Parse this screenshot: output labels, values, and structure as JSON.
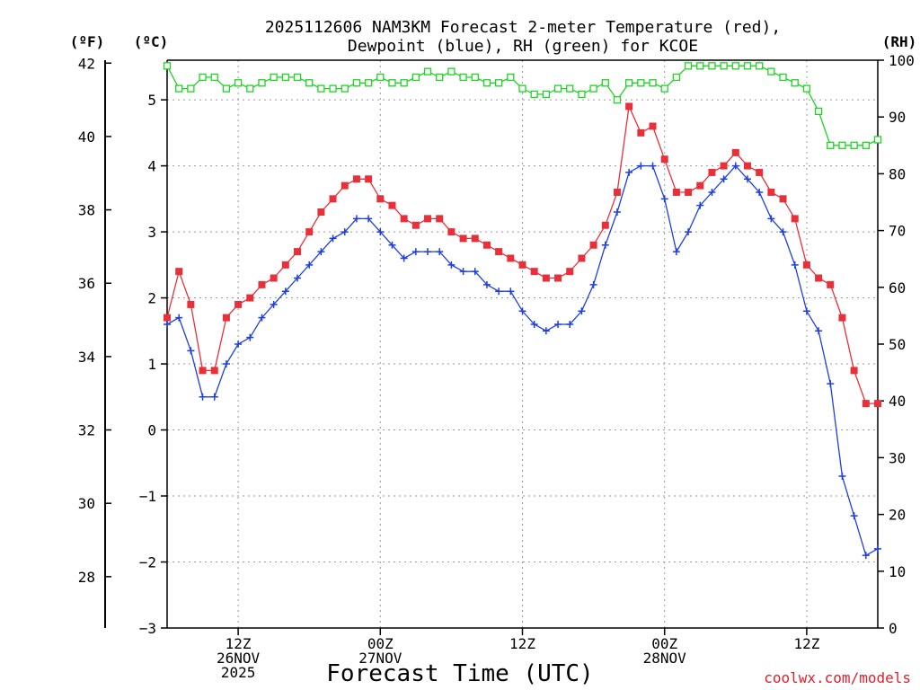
{
  "chart_data": {
    "type": "line",
    "title_line1": "2025112606 NAM3KM Forecast 2-meter Temperature (red),",
    "title_line2": "Dewpoint (blue), RH (green) for KCOE",
    "xlabel": "Forecast Time (UTC)",
    "credit": "coolwx.com/models",
    "units": {
      "fahrenheit": "(ºF)",
      "celsius": "(ºC)",
      "rh": "(RH)"
    },
    "x_range_hours": [
      6,
      66
    ],
    "celsius_range": [
      -3,
      5.6
    ],
    "fahrenheit_ticks": [
      28,
      30,
      32,
      34,
      36,
      38,
      40,
      42
    ],
    "celsius_ticks": [
      -3,
      -2,
      -1,
      0,
      1,
      2,
      3,
      4,
      5
    ],
    "rh_range": [
      0,
      100
    ],
    "rh_ticks": [
      0,
      10,
      20,
      30,
      40,
      50,
      60,
      70,
      80,
      90,
      100
    ],
    "x_ticks": [
      {
        "hour": 12,
        "lines": [
          "12Z",
          "26NOV",
          "2025"
        ]
      },
      {
        "hour": 24,
        "lines": [
          "00Z",
          "27NOV"
        ]
      },
      {
        "hour": 36,
        "lines": [
          "12Z",
          ""
        ]
      },
      {
        "hour": 48,
        "lines": [
          "00Z",
          "28NOV"
        ]
      },
      {
        "hour": 60,
        "lines": [
          "12Z",
          ""
        ]
      }
    ],
    "x": [
      6,
      7,
      8,
      9,
      10,
      11,
      12,
      13,
      14,
      15,
      16,
      17,
      18,
      19,
      20,
      21,
      22,
      23,
      24,
      25,
      26,
      27,
      28,
      29,
      30,
      31,
      32,
      33,
      34,
      35,
      36,
      37,
      38,
      39,
      40,
      41,
      42,
      43,
      44,
      45,
      46,
      47,
      48,
      49,
      50,
      51,
      52,
      53,
      54,
      55,
      56,
      57,
      58,
      59,
      60,
      61,
      62,
      63,
      64,
      65,
      66
    ],
    "series": [
      {
        "name": "Temperature",
        "color": "#e8303a",
        "marker": "filled-square",
        "axis": "celsius",
        "values": [
          1.7,
          2.4,
          1.9,
          0.9,
          0.9,
          1.7,
          1.9,
          2.0,
          2.2,
          2.3,
          2.5,
          2.7,
          3.0,
          3.3,
          3.5,
          3.7,
          3.8,
          3.8,
          3.5,
          3.4,
          3.2,
          3.1,
          3.2,
          3.2,
          3.0,
          2.9,
          2.9,
          2.8,
          2.7,
          2.6,
          2.5,
          2.4,
          2.3,
          2.3,
          2.4,
          2.6,
          2.8,
          3.1,
          3.6,
          4.9,
          4.5,
          4.6,
          4.1,
          3.6,
          3.6,
          3.7,
          3.9,
          4.0,
          4.2,
          4.0,
          3.9,
          3.6,
          3.5,
          3.2,
          2.5,
          2.3,
          2.2,
          1.7,
          0.9,
          0.4,
          0.4
        ]
      },
      {
        "name": "Dewpoint",
        "color": "#1e3fe0",
        "marker": "plus",
        "axis": "celsius",
        "values": [
          1.6,
          1.7,
          1.2,
          0.5,
          0.5,
          1.0,
          1.3,
          1.4,
          1.7,
          1.9,
          2.1,
          2.3,
          2.5,
          2.7,
          2.9,
          3.0,
          3.2,
          3.2,
          3.0,
          2.8,
          2.6,
          2.7,
          2.7,
          2.7,
          2.5,
          2.4,
          2.4,
          2.2,
          2.1,
          2.1,
          1.8,
          1.6,
          1.5,
          1.6,
          1.6,
          1.8,
          2.2,
          2.8,
          3.3,
          3.9,
          4.0,
          4.0,
          3.5,
          2.7,
          3.0,
          3.4,
          3.6,
          3.8,
          4.0,
          3.8,
          3.6,
          3.2,
          3.0,
          2.5,
          1.8,
          1.5,
          0.7,
          -0.7,
          -1.3,
          -1.9,
          -1.8
        ]
      },
      {
        "name": "RH",
        "color": "#1fd424",
        "marker": "open-square",
        "axis": "rh",
        "values": [
          99,
          95,
          95,
          97,
          97,
          95,
          96,
          95,
          96,
          97,
          97,
          97,
          96,
          95,
          95,
          95,
          96,
          96,
          97,
          96,
          96,
          97,
          98,
          97,
          98,
          97,
          97,
          96,
          96,
          97,
          95,
          94,
          94,
          95,
          95,
          94,
          95,
          96,
          93,
          96,
          96,
          96,
          95,
          97,
          99,
          99,
          99,
          99,
          99,
          99,
          99,
          98,
          97,
          96,
          95,
          91,
          85,
          85,
          85,
          85,
          86
        ]
      }
    ]
  }
}
